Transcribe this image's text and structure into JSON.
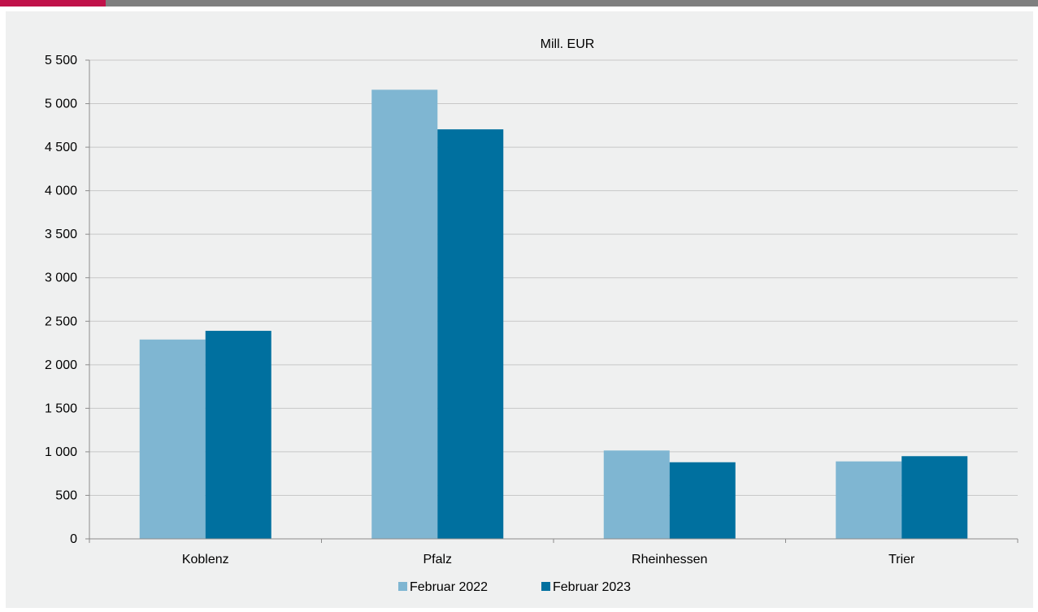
{
  "colors": {
    "top_bar": "#7f7f7f",
    "top_bar_accent": "#c0124a",
    "panel_background": "#eff0f0",
    "gridline": "#c8c8c8",
    "axis": "#8c8c8c",
    "series_2022": "#7fb6d2",
    "series_2023": "#00709f"
  },
  "chart_data": {
    "type": "bar",
    "title": "",
    "unit_label": "Mill. EUR",
    "xlabel": "",
    "ylabel": "",
    "categories": [
      "Koblenz",
      "Pfalz",
      "Rheinhessen",
      "Trier"
    ],
    "series": [
      {
        "name": "Februar 2022",
        "values": [
          2290,
          5160,
          1015,
          890
        ]
      },
      {
        "name": "Februar 2023",
        "values": [
          2390,
          4705,
          880,
          950
        ]
      }
    ],
    "ylim": [
      0,
      5500
    ],
    "yticks": [
      0,
      500,
      1000,
      1500,
      2000,
      2500,
      3000,
      3500,
      4000,
      4500,
      5000,
      5500
    ],
    "ytick_labels": [
      "0",
      "500",
      "1 000",
      "1 500",
      "2 000",
      "2 500",
      "3 000",
      "3 500",
      "4 000",
      "4 500",
      "5 000",
      "5 500"
    ],
    "grid": true,
    "legend_position": "bottom-center"
  }
}
